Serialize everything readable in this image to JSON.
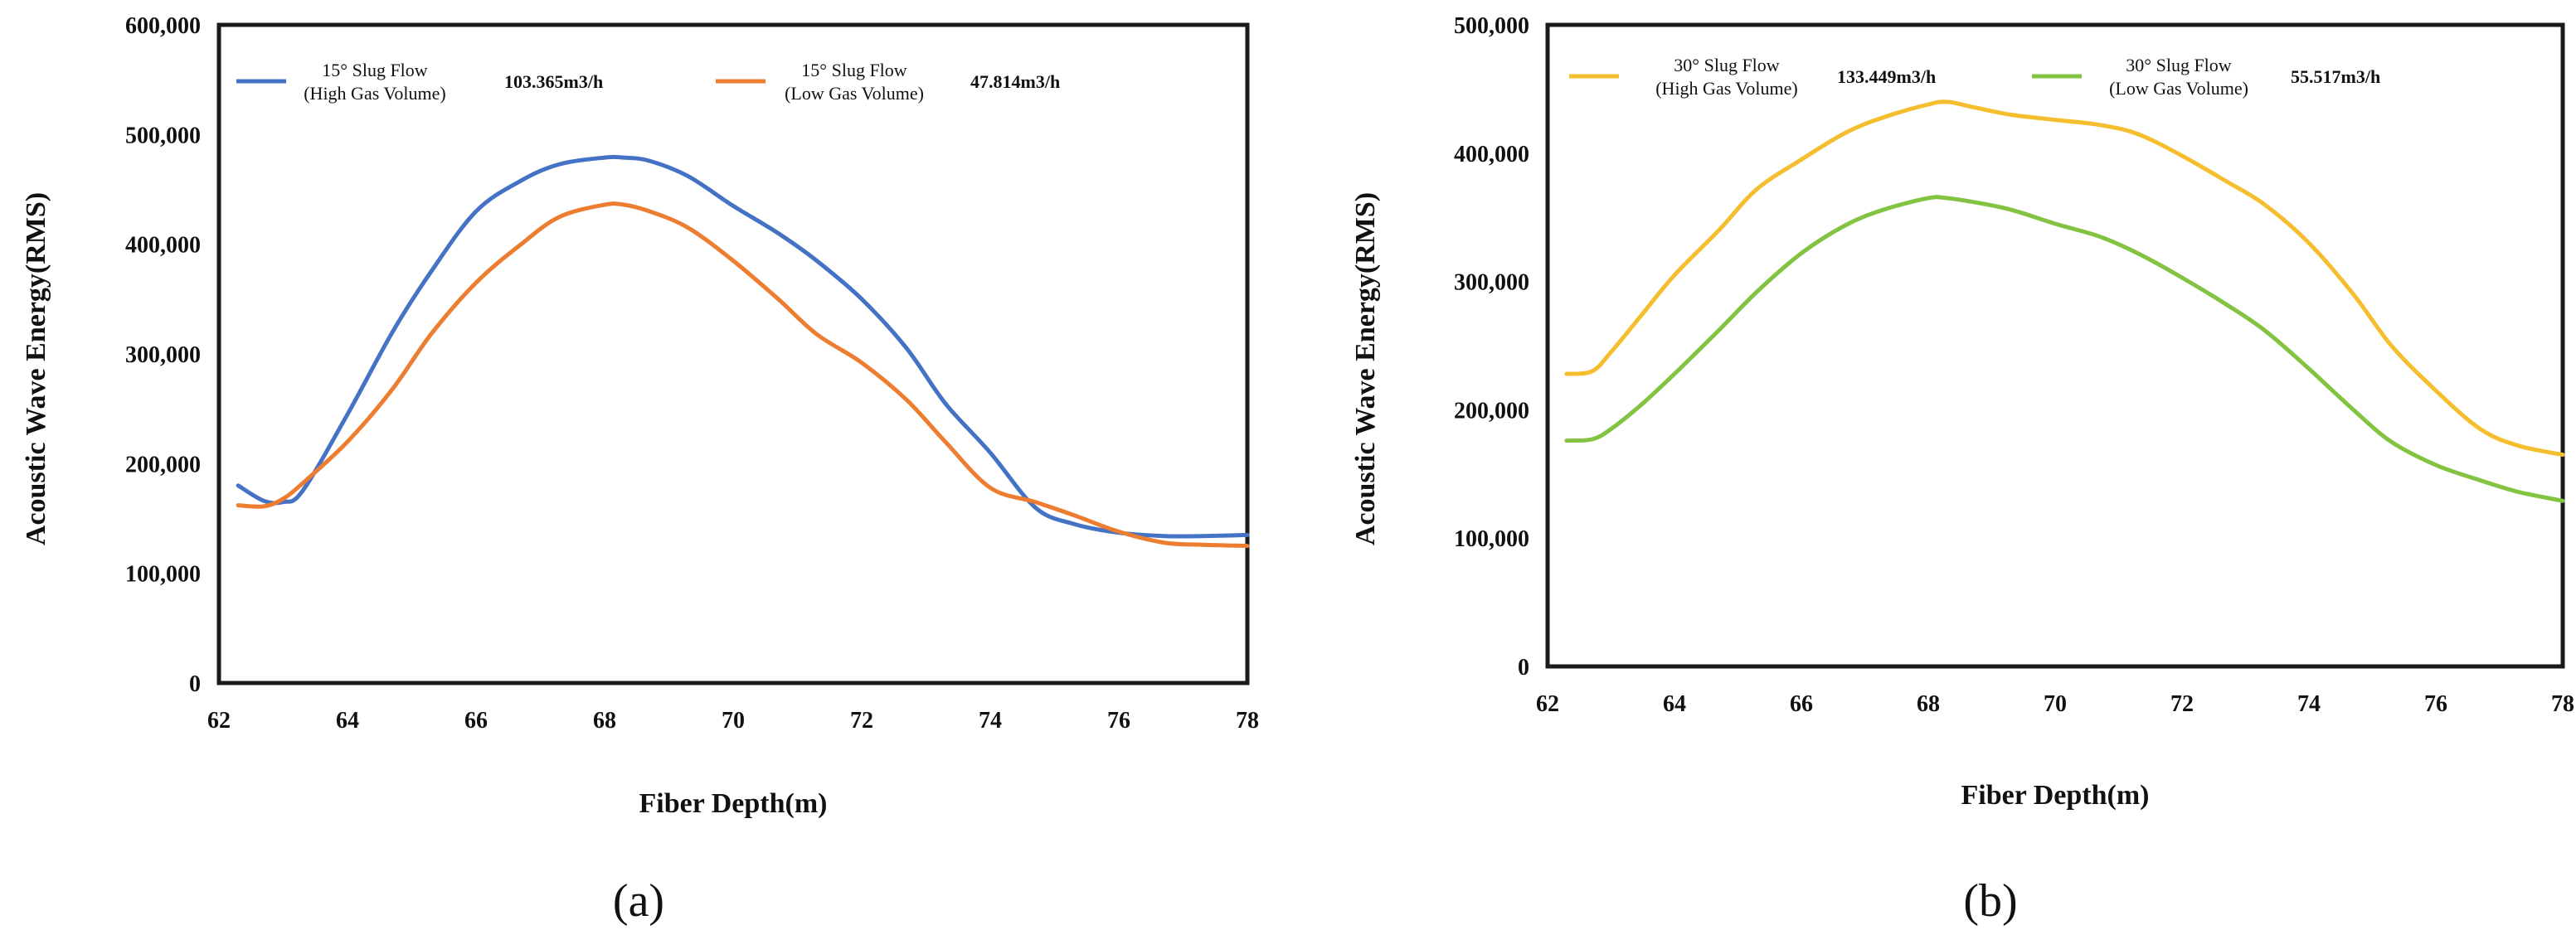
{
  "chart_data": [
    {
      "type": "line",
      "panel_label": "(a)",
      "xlabel": "Fiber Depth(m)",
      "ylabel": "Acoustic Wave Energy(RMS)",
      "xlim": [
        62,
        78
      ],
      "ylim": [
        0,
        600000
      ],
      "xticks": [
        62,
        64,
        66,
        68,
        70,
        72,
        74,
        76,
        78
      ],
      "yticks": [
        0,
        100000,
        200000,
        300000,
        400000,
        500000,
        600000
      ],
      "ytick_labels": [
        "0",
        "100,000",
        "200,000",
        "300,000",
        "400,000",
        "500,000",
        "600,000"
      ],
      "grid": false,
      "legend_position": "top",
      "series": [
        {
          "name": "15° Slug Flow",
          "name_line2": "(High Gas Volume)",
          "value_label": "103.365m3/h",
          "color": "#4472C4",
          "x": [
            62.3,
            62.7,
            63.0,
            63.3,
            64.0,
            64.7,
            65.3,
            66.0,
            66.7,
            67.3,
            68.0,
            68.3,
            68.7,
            69.3,
            70.0,
            70.7,
            71.3,
            72.0,
            72.7,
            73.3,
            74.0,
            74.7,
            75.3,
            76.0,
            76.7,
            77.3,
            78.0
          ],
          "values": [
            180000,
            166000,
            165000,
            175000,
            245000,
            320000,
            375000,
            430000,
            458000,
            473000,
            479000,
            479000,
            476000,
            462000,
            435000,
            410000,
            385000,
            350000,
            305000,
            255000,
            210000,
            160000,
            145000,
            137000,
            134000,
            134000,
            135000
          ]
        },
        {
          "name": "15° Slug Flow",
          "name_line2": "(Low Gas Volume)",
          "value_label": "47.814m3/h",
          "color": "#ED7D31",
          "x": [
            62.3,
            62.7,
            63.0,
            63.3,
            64.0,
            64.7,
            65.3,
            66.0,
            66.7,
            67.3,
            68.0,
            68.3,
            68.7,
            69.3,
            70.0,
            70.7,
            71.3,
            72.0,
            72.7,
            73.3,
            74.0,
            74.7,
            75.3,
            76.0,
            76.7,
            77.3,
            78.0
          ],
          "values": [
            162000,
            161000,
            168000,
            182000,
            220000,
            268000,
            318000,
            365000,
            400000,
            425000,
            436000,
            436000,
            430000,
            415000,
            385000,
            350000,
            318000,
            292000,
            258000,
            220000,
            178000,
            165000,
            153000,
            138000,
            128000,
            126000,
            125000
          ]
        }
      ]
    },
    {
      "type": "line",
      "panel_label": "(b)",
      "xlabel": "Fiber Depth(m)",
      "ylabel": "Acoustic Wave Energy(RMS)",
      "xlim": [
        62,
        78
      ],
      "ylim": [
        0,
        500000
      ],
      "xticks": [
        62,
        64,
        66,
        68,
        70,
        72,
        74,
        76,
        78
      ],
      "yticks": [
        0,
        100000,
        200000,
        300000,
        400000,
        500000
      ],
      "ytick_labels": [
        "0",
        "100,000",
        "200,000",
        "300,000",
        "400,000",
        "500,000"
      ],
      "grid": false,
      "legend_position": "top",
      "series": [
        {
          "name": "30° Slug Flow",
          "name_line2": "(High Gas Volume)",
          "value_label": "133.449m3/h",
          "color": "#F5BE2E",
          "x": [
            62.3,
            62.7,
            63.0,
            63.5,
            64.0,
            64.7,
            65.3,
            66.0,
            66.7,
            67.3,
            68.0,
            68.3,
            68.7,
            69.3,
            70.0,
            70.7,
            71.3,
            72.0,
            72.7,
            73.3,
            74.0,
            74.7,
            75.3,
            76.0,
            76.7,
            77.3,
            78.0
          ],
          "values": [
            228000,
            230000,
            245000,
            275000,
            305000,
            340000,
            372000,
            395000,
            416000,
            428000,
            438000,
            440000,
            436000,
            430000,
            426000,
            422000,
            415000,
            398000,
            378000,
            360000,
            330000,
            290000,
            250000,
            215000,
            185000,
            172000,
            165000
          ]
        },
        {
          "name": "30° Slug Flow",
          "name_line2": "(Low Gas Volume)",
          "value_label": "55.517m3/h",
          "color": "#82C341",
          "x": [
            62.3,
            62.7,
            63.0,
            63.5,
            64.0,
            64.7,
            65.3,
            66.0,
            66.7,
            67.3,
            68.0,
            68.3,
            68.7,
            69.3,
            70.0,
            70.7,
            71.3,
            72.0,
            72.7,
            73.3,
            74.0,
            74.7,
            75.3,
            76.0,
            76.7,
            77.3,
            78.0
          ],
          "values": [
            176000,
            177000,
            185000,
            205000,
            228000,
            262000,
            292000,
            322000,
            344000,
            356000,
            365000,
            365000,
            362000,
            356000,
            345000,
            335000,
            322000,
            303000,
            282000,
            262000,
            232000,
            200000,
            175000,
            157000,
            145000,
            136000,
            129000
          ]
        }
      ]
    }
  ]
}
